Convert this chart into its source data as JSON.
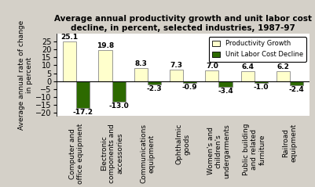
{
  "title": "Average annual productivity growth and unit labor cost\ndecline, in percent, selected industries, 1987-97",
  "ylabel": "Average annual rate of change\nin percent",
  "categories": [
    "Computer and\noffice equipment",
    "Electronic\ncomponents and\naccessories",
    "Communications\nequipment",
    "Ophthalmic\ngoods",
    "Women's and\nchildren's\nundergarments",
    "Public building\nand related\nfurniture",
    "Railroad\nequipment"
  ],
  "productivity_growth": [
    25.1,
    19.8,
    8.3,
    7.3,
    7.0,
    6.4,
    6.2
  ],
  "unit_labor_cost_decline": [
    -17.2,
    -13.0,
    -2.3,
    -0.9,
    -3.4,
    -1.0,
    -2.4
  ],
  "bar_color_productivity": "#FFFFCC",
  "bar_color_ulc": "#2d6a00",
  "bar_edge_color": "#888888",
  "ylim": [
    -22,
    30
  ],
  "yticks": [
    -20,
    -15,
    -10,
    -5,
    0,
    5,
    10,
    15,
    20,
    25
  ],
  "legend_labels": [
    "Productivity Growth",
    "Unit Labor Cost Decline"
  ],
  "background_color": "#d4d0c8",
  "plot_bg_color": "#ffffff",
  "title_fontsize": 7.5,
  "label_fontsize": 6.5,
  "tick_fontsize": 7,
  "annotation_fontsize": 6.5
}
